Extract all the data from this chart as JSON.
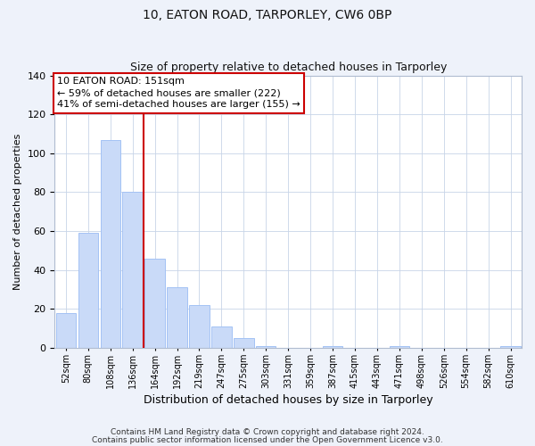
{
  "title": "10, EATON ROAD, TARPORLEY, CW6 0BP",
  "subtitle": "Size of property relative to detached houses in Tarporley",
  "xlabel": "Distribution of detached houses by size in Tarporley",
  "ylabel": "Number of detached properties",
  "bar_labels": [
    "52sqm",
    "80sqm",
    "108sqm",
    "136sqm",
    "164sqm",
    "192sqm",
    "219sqm",
    "247sqm",
    "275sqm",
    "303sqm",
    "331sqm",
    "359sqm",
    "387sqm",
    "415sqm",
    "443sqm",
    "471sqm",
    "498sqm",
    "526sqm",
    "554sqm",
    "582sqm",
    "610sqm"
  ],
  "bar_values": [
    18,
    59,
    107,
    80,
    46,
    31,
    22,
    11,
    5,
    1,
    0,
    0,
    1,
    0,
    0,
    1,
    0,
    0,
    0,
    0,
    1
  ],
  "bar_color": "#c9daf8",
  "bar_edge_color": "#a4c2f4",
  "vline_x": 3.5,
  "vline_color": "#cc0000",
  "ylim": [
    0,
    140
  ],
  "yticks": [
    0,
    20,
    40,
    60,
    80,
    100,
    120,
    140
  ],
  "annotation_title": "10 EATON ROAD: 151sqm",
  "annotation_line1": "← 59% of detached houses are smaller (222)",
  "annotation_line2": "41% of semi-detached houses are larger (155) →",
  "footer1": "Contains HM Land Registry data © Crown copyright and database right 2024.",
  "footer2": "Contains public sector information licensed under the Open Government Licence v3.0.",
  "background_color": "#eef2fa",
  "plot_background": "#ffffff",
  "grid_color": "#c8d4e8",
  "title_fontsize": 10,
  "subtitle_fontsize": 9,
  "xlabel_fontsize": 9,
  "ylabel_fontsize": 8,
  "xtick_fontsize": 7,
  "ytick_fontsize": 8,
  "footer_fontsize": 6.5,
  "ann_fontsize": 8
}
